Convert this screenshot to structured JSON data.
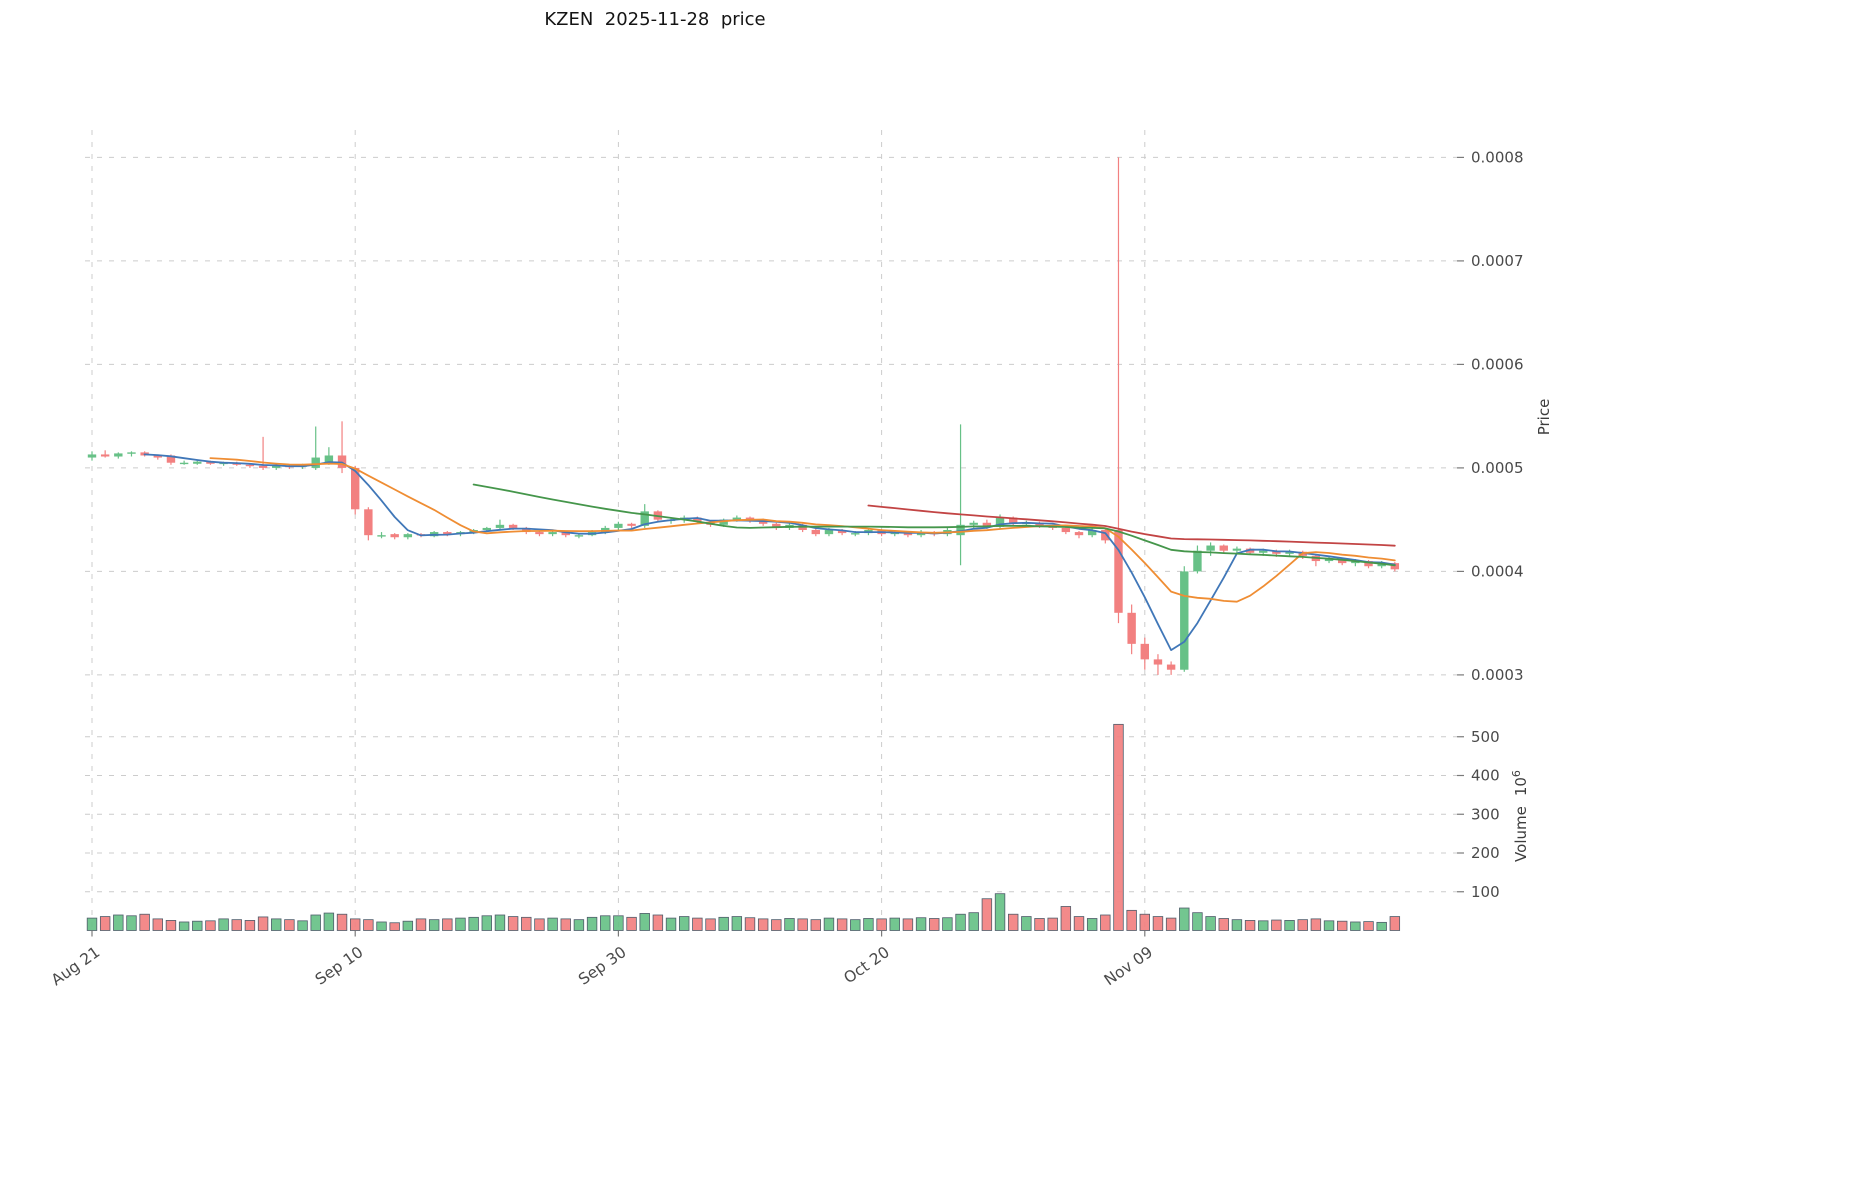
{
  "title": "KZEN  2025-11-28  price",
  "colors": {
    "up": "#67c187",
    "down": "#f28080",
    "grid": "#cccccc",
    "tick": "#4a4a4a",
    "axis_label": "#3d3d3d",
    "title": "#141414",
    "volume_edge": "#4f5d6b",
    "mav": {
      "5": "#4077b8",
      "10": "#ef8d33",
      "30": "#45964b",
      "60": "#c24444"
    }
  },
  "axes": {
    "price_label": "Price",
    "volume_label": "Volume",
    "volume_unit_base": "10",
    "volume_unit_exp": "6",
    "price_ticks": [
      0.0003,
      0.0004,
      0.0005,
      0.0006,
      0.0007,
      0.0008
    ],
    "volume_ticks": [
      100,
      200,
      300,
      400,
      500
    ],
    "x_ticks": [
      {
        "index": 0,
        "label": "Aug 21"
      },
      {
        "index": 20,
        "label": "Sep 10"
      },
      {
        "index": 40,
        "label": "Sep 30"
      },
      {
        "index": 60,
        "label": "Oct 20"
      },
      {
        "index": 80,
        "label": "Nov 09"
      }
    ]
  },
  "chart_data": {
    "type": "candlestick",
    "symbol": "KZEN",
    "as_of_date": "2025-11-28",
    "title": "KZEN  2025-11-28  price",
    "ylabel": "Price",
    "ylabel2": "Volume 10^6",
    "price_ylim": [
      0.0003,
      0.0008
    ],
    "volume_ylim": [
      0,
      500
    ],
    "volume_unit": 1000000,
    "grid": "dashed",
    "mav_windows": [
      5,
      10,
      30,
      60
    ],
    "columns": [
      "date",
      "open",
      "high",
      "low",
      "close",
      "volume_millions"
    ],
    "rows": [
      [
        "2025-08-21",
        0.00051,
        0.000516,
        0.000507,
        0.000513,
        32
      ],
      [
        "2025-08-22",
        0.000513,
        0.000517,
        0.00051,
        0.000511,
        36
      ],
      [
        "2025-08-23",
        0.000511,
        0.000515,
        0.000509,
        0.000514,
        40
      ],
      [
        "2025-08-24",
        0.000514,
        0.000516,
        0.000511,
        0.000515,
        38
      ],
      [
        "2025-08-25",
        0.000515,
        0.000516,
        0.000511,
        0.000512,
        42
      ],
      [
        "2025-08-26",
        0.000512,
        0.000513,
        0.000508,
        0.00051,
        30
      ],
      [
        "2025-08-27",
        0.000512,
        0.000513,
        0.000503,
        0.000505,
        26
      ],
      [
        "2025-08-28",
        0.000505,
        0.000507,
        0.000503,
        0.000505,
        22
      ],
      [
        "2025-08-29",
        0.000504,
        0.000507,
        0.000503,
        0.000506,
        24
      ],
      [
        "2025-08-30",
        0.000506,
        0.000507,
        0.000503,
        0.000504,
        25
      ],
      [
        "2025-08-31",
        0.000504,
        0.000506,
        0.000502,
        0.000505,
        30
      ],
      [
        "2025-09-01",
        0.000505,
        0.000506,
        0.000502,
        0.000503,
        28
      ],
      [
        "2025-09-02",
        0.000503,
        0.000504,
        0.0005,
        0.000502,
        26
      ],
      [
        "2025-09-03",
        0.000502,
        0.00053,
        0.000498,
        0.0005,
        35
      ],
      [
        "2025-09-04",
        0.0005,
        0.000503,
        0.000498,
        0.000502,
        30
      ],
      [
        "2025-09-05",
        0.000502,
        0.000503,
        0.000499,
        0.000501,
        28
      ],
      [
        "2025-09-06",
        0.000501,
        0.000504,
        0.000499,
        0.000503,
        25
      ],
      [
        "2025-09-07",
        0.0005,
        0.00054,
        0.000498,
        0.00051,
        40
      ],
      [
        "2025-09-08",
        0.000505,
        0.00052,
        0.000503,
        0.000512,
        45
      ],
      [
        "2025-09-09",
        0.000512,
        0.000545,
        0.000495,
        0.0005,
        42
      ],
      [
        "2025-09-10",
        0.0005,
        0.000502,
        0.000455,
        0.00046,
        30
      ],
      [
        "2025-09-11",
        0.00046,
        0.000462,
        0.00043,
        0.000435,
        28
      ],
      [
        "2025-09-12",
        0.000435,
        0.000438,
        0.000432,
        0.000435,
        22
      ],
      [
        "2025-09-13",
        0.000436,
        0.000437,
        0.000431,
        0.000433,
        20
      ],
      [
        "2025-09-14",
        0.000433,
        0.000437,
        0.000431,
        0.000436,
        24
      ],
      [
        "2025-09-15",
        0.000436,
        0.000437,
        0.000433,
        0.000435,
        30
      ],
      [
        "2025-09-16",
        0.000434,
        0.000439,
        0.000433,
        0.000438,
        28
      ],
      [
        "2025-09-17",
        0.000438,
        0.000439,
        0.000434,
        0.000436,
        30
      ],
      [
        "2025-09-18",
        0.000436,
        0.000439,
        0.000434,
        0.000438,
        32
      ],
      [
        "2025-09-19",
        0.000438,
        0.000441,
        0.000436,
        0.00044,
        34
      ],
      [
        "2025-09-20",
        0.00044,
        0.000443,
        0.000438,
        0.000442,
        38
      ],
      [
        "2025-09-21",
        0.000442,
        0.00045,
        0.00044,
        0.000445,
        40
      ],
      [
        "2025-09-22",
        0.000445,
        0.000446,
        0.00044,
        0.000442,
        36
      ],
      [
        "2025-09-23",
        0.000442,
        0.000443,
        0.000436,
        0.000438,
        34
      ],
      [
        "2025-09-24",
        0.000438,
        0.000439,
        0.000434,
        0.000436,
        30
      ],
      [
        "2025-09-25",
        0.000436,
        0.00044,
        0.000434,
        0.000438,
        32
      ],
      [
        "2025-09-26",
        0.000438,
        0.000439,
        0.000433,
        0.000435,
        30
      ],
      [
        "2025-09-27",
        0.000435,
        0.000437,
        0.000432,
        0.000435,
        28
      ],
      [
        "2025-09-28",
        0.000435,
        0.00044,
        0.000434,
        0.000438,
        34
      ],
      [
        "2025-09-29",
        0.000438,
        0.000444,
        0.000436,
        0.000442,
        38
      ],
      [
        "2025-09-30",
        0.000442,
        0.000448,
        0.00044,
        0.000446,
        38
      ],
      [
        "2025-10-01",
        0.000446,
        0.000447,
        0.000442,
        0.000444,
        34
      ],
      [
        "2025-10-02",
        0.000444,
        0.000465,
        0.000442,
        0.000458,
        44
      ],
      [
        "2025-10-03",
        0.000458,
        0.000459,
        0.000448,
        0.00045,
        40
      ],
      [
        "2025-10-04",
        0.00045,
        0.000452,
        0.000446,
        0.00045,
        32
      ],
      [
        "2025-10-05",
        0.00045,
        0.000454,
        0.000447,
        0.000452,
        36
      ],
      [
        "2025-10-06",
        0.000452,
        0.000453,
        0.000446,
        0.000448,
        32
      ],
      [
        "2025-10-07",
        0.000448,
        0.000449,
        0.000443,
        0.000445,
        30
      ],
      [
        "2025-10-08",
        0.000445,
        0.000451,
        0.000443,
        0.00045,
        34
      ],
      [
        "2025-10-09",
        0.00045,
        0.000454,
        0.000448,
        0.000452,
        36
      ],
      [
        "2025-10-10",
        0.000452,
        0.000453,
        0.000447,
        0.00045,
        33
      ],
      [
        "2025-10-11",
        0.00045,
        0.000451,
        0.000444,
        0.000446,
        30
      ],
      [
        "2025-10-12",
        0.000446,
        0.000447,
        0.00044,
        0.000442,
        28
      ],
      [
        "2025-10-13",
        0.000442,
        0.000447,
        0.00044,
        0.000445,
        31
      ],
      [
        "2025-10-14",
        0.000445,
        0.000446,
        0.000438,
        0.00044,
        30
      ],
      [
        "2025-10-15",
        0.00044,
        0.000441,
        0.000434,
        0.000436,
        28
      ],
      [
        "2025-10-16",
        0.000436,
        0.000442,
        0.000434,
        0.00044,
        32
      ],
      [
        "2025-10-17",
        0.00044,
        0.000441,
        0.000435,
        0.000437,
        30
      ],
      [
        "2025-10-18",
        0.000437,
        0.000439,
        0.000434,
        0.000437,
        28
      ],
      [
        "2025-10-19",
        0.000437,
        0.000441,
        0.000435,
        0.00044,
        31
      ],
      [
        "2025-10-20",
        0.00044,
        0.000441,
        0.000434,
        0.000436,
        30
      ],
      [
        "2025-10-21",
        0.000436,
        0.00044,
        0.000434,
        0.000438,
        32
      ],
      [
        "2025-10-22",
        0.000438,
        0.000439,
        0.000433,
        0.000435,
        30
      ],
      [
        "2025-10-23",
        0.000435,
        0.00044,
        0.000433,
        0.000438,
        33
      ],
      [
        "2025-10-24",
        0.000438,
        0.000439,
        0.000434,
        0.000436,
        31
      ],
      [
        "2025-10-25",
        0.000436,
        0.000442,
        0.000434,
        0.00044,
        33
      ],
      [
        "2025-10-26",
        0.000435,
        0.000542,
        0.000406,
        0.000445,
        42
      ],
      [
        "2025-10-27",
        0.000445,
        0.000449,
        0.000441,
        0.000447,
        46
      ],
      [
        "2025-10-28",
        0.000447,
        0.00045,
        0.000441,
        0.000443,
        82
      ],
      [
        "2025-10-29",
        0.000443,
        0.000455,
        0.000441,
        0.000452,
        95
      ],
      [
        "2025-10-30",
        0.000452,
        0.000453,
        0.000444,
        0.000446,
        42
      ],
      [
        "2025-10-31",
        0.000446,
        0.000449,
        0.000443,
        0.000447,
        36
      ],
      [
        "2025-11-01",
        0.000447,
        0.000448,
        0.000442,
        0.000444,
        31
      ],
      [
        "2025-11-02",
        0.000444,
        0.000445,
        0.00044,
        0.000442,
        32
      ],
      [
        "2025-11-03",
        0.000442,
        0.000443,
        0.000436,
        0.000438,
        62
      ],
      [
        "2025-11-04",
        0.000438,
        0.000439,
        0.000432,
        0.000435,
        36
      ],
      [
        "2025-11-05",
        0.000435,
        0.000442,
        0.000433,
        0.00044,
        31
      ],
      [
        "2025-11-06",
        0.00044,
        0.000441,
        0.000427,
        0.00043,
        40
      ],
      [
        "2025-11-07",
        0.00044,
        0.0008,
        0.00035,
        0.00036,
        532
      ],
      [
        "2025-11-08",
        0.00036,
        0.000368,
        0.00032,
        0.00033,
        52
      ],
      [
        "2025-11-09",
        0.00033,
        0.000336,
        0.000305,
        0.000315,
        42
      ],
      [
        "2025-11-10",
        0.000315,
        0.00032,
        0.0003,
        0.00031,
        36
      ],
      [
        "2025-11-11",
        0.00031,
        0.000313,
        0.0003,
        0.000305,
        32
      ],
      [
        "2025-11-12",
        0.000305,
        0.000405,
        0.000303,
        0.0004,
        58
      ],
      [
        "2025-11-13",
        0.0004,
        0.000425,
        0.000398,
        0.00042,
        46
      ],
      [
        "2025-11-14",
        0.00042,
        0.000428,
        0.000415,
        0.000425,
        36
      ],
      [
        "2025-11-15",
        0.000425,
        0.000426,
        0.000418,
        0.00042,
        31
      ],
      [
        "2025-11-16",
        0.00042,
        0.000424,
        0.000417,
        0.000422,
        28
      ],
      [
        "2025-11-17",
        0.000422,
        0.000423,
        0.000416,
        0.000418,
        26
      ],
      [
        "2025-11-18",
        0.000418,
        0.000422,
        0.000415,
        0.00042,
        25
      ],
      [
        "2025-11-19",
        0.00042,
        0.000421,
        0.000414,
        0.000417,
        27
      ],
      [
        "2025-11-20",
        0.000417,
        0.000421,
        0.000414,
        0.000419,
        26
      ],
      [
        "2025-11-21",
        0.000419,
        0.00042,
        0.000412,
        0.000415,
        28
      ],
      [
        "2025-11-22",
        0.000415,
        0.000416,
        0.000405,
        0.00041,
        30
      ],
      [
        "2025-11-23",
        0.00041,
        0.000414,
        0.000408,
        0.000412,
        25
      ],
      [
        "2025-11-24",
        0.000412,
        0.000413,
        0.000406,
        0.000408,
        24
      ],
      [
        "2025-11-25",
        0.000408,
        0.000412,
        0.000405,
        0.00041,
        22
      ],
      [
        "2025-11-26",
        0.00041,
        0.000411,
        0.000403,
        0.000405,
        23
      ],
      [
        "2025-11-27",
        0.000405,
        0.00041,
        0.000403,
        0.000408,
        21
      ],
      [
        "2025-11-28",
        0.000408,
        0.000409,
        0.0004,
        0.000402,
        36
      ]
    ]
  }
}
